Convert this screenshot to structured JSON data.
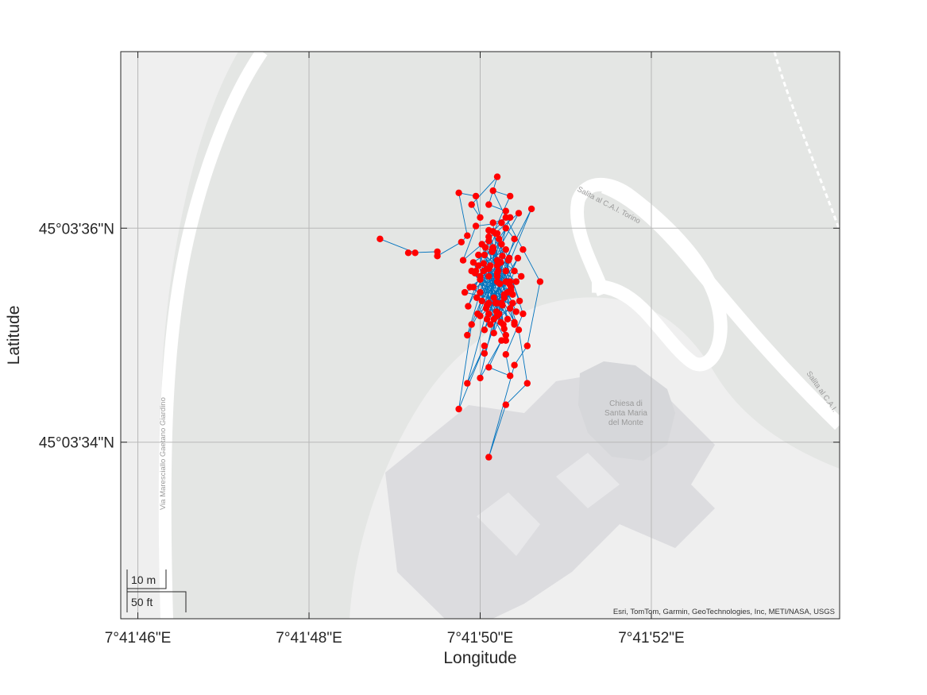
{
  "chart_data": {
    "type": "line",
    "title": "",
    "xlabel": "Longitude",
    "ylabel": "Latitude",
    "x_ticks": [
      "7°41'46\"E",
      "7°41'48\"E",
      "7°41'50\"E",
      "7°41'52\"E"
    ],
    "y_ticks": [
      "45°03'36\"N",
      "45°03'34\"N"
    ],
    "x_tick_seconds": [
      46,
      48,
      50,
      52
    ],
    "y_tick_seconds": [
      36,
      34
    ],
    "xlim_seconds": [
      45.8,
      54.2
    ],
    "ylim_seconds": [
      32.35,
      37.65
    ],
    "grid": true,
    "series": [
      {
        "marker": "filled-circle",
        "marker_color": "#ff0000",
        "line_color": "#0072bd",
        "lon_seconds": [
          48.83,
          49.24,
          49.16,
          49.5,
          49.5,
          49.78,
          49.85,
          49.75,
          49.95,
          50.0,
          49.9,
          50.2,
          50.1,
          50.3,
          50.25,
          50.15,
          50.35,
          50.2,
          50.45,
          50.55,
          50.3,
          50.1,
          50.4,
          50.55,
          50.7,
          50.5,
          50.3,
          50.15,
          50.35,
          49.95,
          50.25,
          50.05,
          50.4,
          50.2,
          50.5,
          50.3,
          50.35,
          50.1,
          50.25,
          50.0,
          50.2,
          50.4,
          50.15,
          50.3,
          50.1,
          49.85,
          50.05,
          49.75,
          49.9,
          50.2,
          50.15,
          50.35,
          50.0,
          50.3,
          50.1,
          50.25,
          50.45,
          49.8,
          49.95,
          50.25,
          50.4,
          50.1,
          50.3,
          50.6,
          49.85,
          50.15,
          50.35,
          50.2,
          49.92,
          50.1,
          50.28,
          50.05,
          50.42,
          49.97,
          50.22,
          50.08,
          50.33,
          49.88,
          50.18,
          50.48,
          50.02,
          50.27,
          50.12,
          50.38,
          49.82,
          50.2,
          50.07,
          50.3,
          49.9,
          50.16,
          50.44,
          50.05,
          50.23,
          49.98,
          50.32,
          50.1,
          49.96,
          50.21,
          50.36,
          50.0,
          50.26,
          50.14,
          50.4,
          50.04,
          50.3,
          49.94,
          50.19,
          50.1,
          50.34,
          50.24,
          50.0,
          50.28,
          50.08,
          49.86,
          50.18,
          50.46,
          50.12,
          50.3,
          50.06,
          50.22,
          49.98,
          50.36,
          50.16,
          50.26,
          50.02,
          50.2,
          50.1,
          50.32,
          50.42,
          50.0,
          50.24,
          49.92,
          50.14,
          50.38,
          50.08,
          50.2,
          50.28,
          50.04,
          50.16,
          50.34
        ],
        "lat_seconds": [
          35.9,
          35.77,
          35.77,
          35.78,
          35.74,
          35.87,
          35.93,
          36.33,
          36.3,
          36.1,
          36.22,
          36.48,
          36.22,
          36.16,
          36.05,
          35.97,
          35.5,
          35.65,
          35.05,
          34.55,
          34.35,
          33.86,
          34.72,
          34.9,
          35.5,
          35.8,
          36.1,
          36.35,
          36.3,
          35.6,
          35.3,
          34.83,
          35.6,
          35.95,
          35.2,
          34.82,
          34.62,
          34.7,
          34.95,
          34.6,
          35.3,
          35.1,
          35.82,
          36.0,
          35.3,
          34.55,
          34.9,
          34.31,
          35.1,
          35.7,
          36.05,
          36.1,
          35.4,
          34.95,
          35.55,
          35.85,
          36.14,
          35.7,
          36.02,
          36.05,
          35.9,
          35.2,
          35.6,
          36.18,
          35.0,
          35.8,
          35.25,
          35.18,
          35.45,
          35.62,
          35.35,
          35.75,
          35.5,
          35.2,
          35.9,
          35.15,
          35.7,
          35.45,
          35.3,
          35.55,
          35.85,
          35.1,
          35.65,
          35.3,
          35.4,
          35.55,
          35.25,
          35.8,
          35.6,
          35.35,
          35.72,
          35.05,
          35.48,
          35.75,
          35.15,
          35.92,
          35.35,
          35.6,
          35.42,
          35.52,
          35.28,
          35.78,
          35.12,
          35.67,
          35.0,
          35.58,
          35.22,
          35.88,
          35.48,
          35.68,
          35.18,
          35.38,
          35.62,
          35.27,
          35.95,
          35.32,
          35.1,
          35.5,
          35.82,
          35.2,
          35.65,
          35.45,
          35.02,
          35.74,
          35.32,
          35.58,
          35.98,
          35.4,
          35.22,
          35.55,
          35.12,
          35.68,
          35.8,
          35.38,
          35.28,
          35.5,
          35.06,
          35.6,
          35.15,
          35.72
        ]
      }
    ]
  },
  "map": {
    "land_color": "#e4e6e4",
    "paved_color": "#efefef",
    "building_color": "#dcdcdf",
    "road_color": "#ffffff",
    "labels": {
      "road_left": "Via Maresciallo Gaetano Giardino",
      "road_top": "Salita al C.A.I. Torino",
      "road_right": "Salita al C.A.I.",
      "church_line1": "Chiesa di",
      "church_line2": "Santa Maria",
      "church_line3": "del Monte"
    }
  },
  "scalebar": {
    "metric": "10 m",
    "imperial": "50 ft"
  },
  "attribution": "Esri, TomTom, Garmin, GeoTechnologies, Inc, METI/NASA, USGS"
}
